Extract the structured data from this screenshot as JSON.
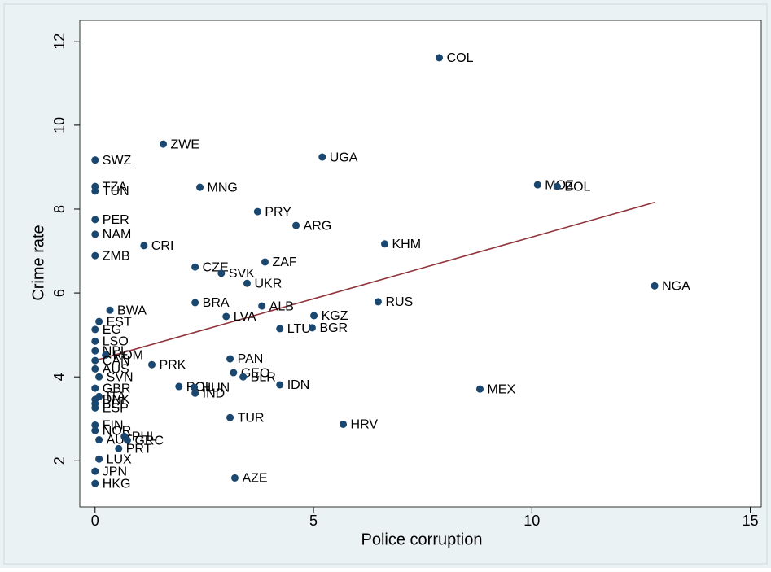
{
  "chart_data": {
    "type": "scatter",
    "xlabel": "Police corruption",
    "ylabel": "Crime rate",
    "color": "#1a476f",
    "labels": [
      "COL",
      "ZWE",
      "UGA",
      "SWZ",
      "TZA",
      "TUN",
      "MNG",
      "MOZ",
      "BOL",
      "PRY",
      "PER",
      "ARG",
      "NAM",
      "CRI",
      "KHM",
      "ZMB",
      "CZE",
      "ZAF",
      "SVK",
      "UKR",
      "NGA",
      "BRA",
      "RUS",
      "ALB",
      "BWA",
      "LVA",
      "KGZ",
      "EST",
      "LTU",
      "BGR",
      "EG",
      "LSO",
      "NPL",
      "ROM",
      "CAN",
      "PRK",
      "PAN",
      "GEO",
      "BLR",
      "IDN",
      "MEX",
      "AUS",
      "SVN",
      "POL",
      "HUN",
      "IND",
      "GBR",
      "ITA",
      "DNK",
      "BEL",
      "ESP",
      "TUR",
      "HRV",
      "FIN",
      "NOR",
      "AUT",
      "PHL",
      "GRC",
      "PRT",
      "LUX",
      "JPN",
      "HKG",
      "AZE"
    ],
    "x": [
      7.88,
      1.56,
      5.2,
      0,
      0,
      0,
      2.4,
      10.13,
      10.58,
      3.72,
      0,
      4.6,
      0,
      1.12,
      6.63,
      0,
      2.29,
      3.89,
      2.89,
      3.48,
      12.81,
      2.29,
      6.48,
      3.82,
      0.34,
      3.0,
      5.01,
      0.09,
      4.23,
      4.97,
      0,
      0,
      0,
      0.24,
      0,
      1.3,
      3.09,
      3.17,
      3.39,
      4.23,
      8.81,
      0,
      0.09,
      1.92,
      2.27,
      2.29,
      0,
      0.09,
      0,
      0,
      0,
      3.09,
      5.68,
      0,
      0,
      0.09,
      0.67,
      0.74,
      0.54,
      0.09,
      0,
      0,
      3.2
    ],
    "values": [
      11.61,
      9.55,
      9.24,
      9.17,
      8.54,
      8.43,
      8.52,
      8.58,
      8.54,
      7.94,
      7.75,
      7.61,
      7.4,
      7.13,
      7.17,
      6.89,
      6.62,
      6.74,
      6.47,
      6.23,
      6.17,
      5.77,
      5.79,
      5.69,
      5.59,
      5.44,
      5.46,
      5.32,
      5.15,
      5.17,
      5.13,
      4.85,
      4.62,
      4.52,
      4.39,
      4.29,
      4.43,
      4.1,
      4.0,
      3.81,
      3.71,
      4.19,
      4.0,
      3.77,
      3.75,
      3.61,
      3.73,
      3.53,
      3.46,
      3.36,
      3.26,
      3.03,
      2.87,
      2.85,
      2.72,
      2.5,
      2.58,
      2.49,
      2.29,
      2.04,
      1.75,
      1.46,
      1.59
    ],
    "fit_line": {
      "color": "#90353b",
      "x": [
        0,
        12.81
      ],
      "values": [
        4.39,
        8.16
      ]
    },
    "xlim": [
      -0.35,
      15.25
    ],
    "ylim": [
      0.9,
      12.5
    ],
    "xticks": [
      0,
      5,
      10,
      15
    ],
    "yticks": [
      2,
      4,
      6,
      8,
      10,
      12
    ]
  }
}
